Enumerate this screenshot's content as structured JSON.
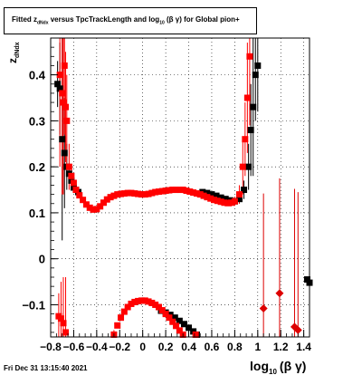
{
  "title_parts": {
    "pre": "Fitted  z",
    "sub1": "dNdx",
    "mid": "  versus TpcTrackLength and log",
    "sub2": "10",
    "post": "(β γ) for Global pion+"
  },
  "timestamp": "Fri Dec 31 13:15:40 2021",
  "chart_data": {
    "type": "scatter",
    "xlim": [
      -0.8,
      1.45
    ],
    "ylim": [
      -0.17,
      0.48
    ],
    "grid": true,
    "ylabel": {
      "main": "z",
      "sub": "dNdx"
    },
    "xlabel": {
      "main": "log",
      "sub": "10",
      "post": "(β γ)"
    },
    "x_ticks": [
      "-0.8",
      "-0.6",
      "-0.4",
      "-0.2",
      "0",
      "0.2",
      "0.4",
      "0.6",
      "0.8",
      "1",
      "1.2",
      "1.4"
    ],
    "x_tick_values": [
      -0.8,
      -0.6,
      -0.4,
      -0.2,
      0,
      0.2,
      0.4,
      0.6,
      0.8,
      1.0,
      1.2,
      1.4
    ],
    "y_ticks": [
      "-0.1",
      "0",
      "0.1",
      "0.2",
      "0.3",
      "0.4"
    ],
    "y_tick_values": [
      -0.1,
      0,
      0.1,
      0.2,
      0.3,
      0.4
    ],
    "series": [
      {
        "color": "#000000",
        "marker": "square",
        "points": [
          {
            "x": -0.74,
            "y": 0.38,
            "err": 0.05
          },
          {
            "x": -0.72,
            "y": 0.37,
            "err": 0.1
          },
          {
            "x": -0.7,
            "y": 0.26,
            "err": 0.22
          },
          {
            "x": -0.68,
            "y": 0.23,
            "err": 0.12
          },
          {
            "x": -0.66,
            "y": 0.2,
            "err": 0.05
          },
          {
            "x": -0.64,
            "y": 0.185,
            "err": 0.02
          },
          {
            "x": -0.62,
            "y": 0.17,
            "err": 0.01
          },
          {
            "x": -0.6,
            "y": 0.155,
            "err": 0.01
          },
          {
            "x": -0.58,
            "y": 0.15,
            "err": 0.005
          },
          {
            "x": -0.56,
            "y": 0.145,
            "err": 0.005
          },
          {
            "x": 0.52,
            "y": 0.145,
            "err": 0.004
          },
          {
            "x": 0.56,
            "y": 0.143,
            "err": 0.004
          },
          {
            "x": 0.6,
            "y": 0.14,
            "err": 0.004
          },
          {
            "x": 0.64,
            "y": 0.137,
            "err": 0.005
          },
          {
            "x": 0.68,
            "y": 0.133,
            "err": 0.005
          },
          {
            "x": 0.72,
            "y": 0.13,
            "err": 0.005
          },
          {
            "x": 0.76,
            "y": 0.127,
            "err": 0.006
          },
          {
            "x": 0.8,
            "y": 0.125,
            "err": 0.008
          },
          {
            "x": 0.84,
            "y": 0.13,
            "err": 0.01
          },
          {
            "x": 0.88,
            "y": 0.15,
            "err": 0.02
          },
          {
            "x": 0.92,
            "y": 0.2,
            "err": 0.05
          },
          {
            "x": 0.94,
            "y": 0.28,
            "err": 0.1
          },
          {
            "x": 0.96,
            "y": 0.33,
            "err": 0.15
          },
          {
            "x": 0.98,
            "y": 0.4,
            "err": 0.1
          },
          {
            "x": 1.0,
            "y": 0.42,
            "err": 0.1
          },
          {
            "x": 0.16,
            "y": -0.113,
            "err": 0.003
          },
          {
            "x": 0.2,
            "y": -0.117,
            "err": 0.003
          },
          {
            "x": 0.24,
            "y": -0.122,
            "err": 0.003
          },
          {
            "x": 0.28,
            "y": -0.128,
            "err": 0.003
          },
          {
            "x": 0.32,
            "y": -0.135,
            "err": 0.003
          },
          {
            "x": 0.36,
            "y": -0.142,
            "err": 0.003
          },
          {
            "x": 0.4,
            "y": -0.15,
            "err": 0.003
          },
          {
            "x": 0.44,
            "y": -0.158,
            "err": 0.004
          },
          {
            "x": 0.47,
            "y": -0.165,
            "err": 0.005
          },
          {
            "x": 1.43,
            "y": -0.045,
            "err": 0.005
          },
          {
            "x": 1.45,
            "y": -0.052,
            "err": 0.005
          }
        ]
      },
      {
        "color": "#ff0000",
        "marker": "square",
        "points": [
          {
            "x": -0.72,
            "y": 0.4,
            "err": 0.2
          },
          {
            "x": -0.7,
            "y": 0.36,
            "err": 0.22
          },
          {
            "x": -0.69,
            "y": 0.34,
            "err": 0.2
          },
          {
            "x": -0.68,
            "y": 0.42,
            "err": 0.15
          },
          {
            "x": -0.67,
            "y": 0.33,
            "err": 0.12
          },
          {
            "x": -0.66,
            "y": 0.3,
            "err": 0.1
          },
          {
            "x": -0.64,
            "y": 0.2,
            "err": 0.05
          },
          {
            "x": -0.62,
            "y": 0.18,
            "err": 0.02
          },
          {
            "x": -0.6,
            "y": 0.165,
            "err": 0.01
          },
          {
            "x": -0.58,
            "y": 0.15,
            "err": 0.005
          },
          {
            "x": -0.55,
            "y": 0.138,
            "err": 0.003
          },
          {
            "x": -0.52,
            "y": 0.128,
            "err": 0.003
          },
          {
            "x": -0.49,
            "y": 0.118,
            "err": 0.003
          },
          {
            "x": -0.46,
            "y": 0.111,
            "err": 0.002
          },
          {
            "x": -0.43,
            "y": 0.107,
            "err": 0.002
          },
          {
            "x": -0.4,
            "y": 0.108,
            "err": 0.002
          },
          {
            "x": -0.37,
            "y": 0.114,
            "err": 0.002
          },
          {
            "x": -0.34,
            "y": 0.122,
            "err": 0.002
          },
          {
            "x": -0.31,
            "y": 0.129,
            "err": 0.002
          },
          {
            "x": -0.28,
            "y": 0.134,
            "err": 0.002
          },
          {
            "x": -0.25,
            "y": 0.137,
            "err": 0.002
          },
          {
            "x": -0.22,
            "y": 0.14,
            "err": 0.002
          },
          {
            "x": -0.19,
            "y": 0.141,
            "err": 0.002
          },
          {
            "x": -0.16,
            "y": 0.142,
            "err": 0.002
          },
          {
            "x": -0.13,
            "y": 0.143,
            "err": 0.002
          },
          {
            "x": -0.1,
            "y": 0.143,
            "err": 0.002
          },
          {
            "x": -0.07,
            "y": 0.142,
            "err": 0.002
          },
          {
            "x": -0.04,
            "y": 0.141,
            "err": 0.002
          },
          {
            "x": -0.01,
            "y": 0.14,
            "err": 0.002
          },
          {
            "x": 0.02,
            "y": 0.14,
            "err": 0.002
          },
          {
            "x": 0.05,
            "y": 0.141,
            "err": 0.002
          },
          {
            "x": 0.08,
            "y": 0.143,
            "err": 0.002
          },
          {
            "x": 0.11,
            "y": 0.145,
            "err": 0.002
          },
          {
            "x": 0.14,
            "y": 0.146,
            "err": 0.002
          },
          {
            "x": 0.17,
            "y": 0.147,
            "err": 0.002
          },
          {
            "x": 0.2,
            "y": 0.148,
            "err": 0.002
          },
          {
            "x": 0.23,
            "y": 0.149,
            "err": 0.002
          },
          {
            "x": 0.26,
            "y": 0.15,
            "err": 0.002
          },
          {
            "x": 0.29,
            "y": 0.15,
            "err": 0.002
          },
          {
            "x": 0.32,
            "y": 0.15,
            "err": 0.002
          },
          {
            "x": 0.35,
            "y": 0.15,
            "err": 0.002
          },
          {
            "x": 0.38,
            "y": 0.148,
            "err": 0.002
          },
          {
            "x": 0.41,
            "y": 0.146,
            "err": 0.002
          },
          {
            "x": 0.44,
            "y": 0.144,
            "err": 0.003
          },
          {
            "x": 0.47,
            "y": 0.142,
            "err": 0.003
          },
          {
            "x": 0.5,
            "y": 0.14,
            "err": 0.003
          },
          {
            "x": 0.53,
            "y": 0.137,
            "err": 0.003
          },
          {
            "x": 0.56,
            "y": 0.134,
            "err": 0.003
          },
          {
            "x": 0.59,
            "y": 0.131,
            "err": 0.004
          },
          {
            "x": 0.62,
            "y": 0.128,
            "err": 0.004
          },
          {
            "x": 0.65,
            "y": 0.126,
            "err": 0.004
          },
          {
            "x": 0.68,
            "y": 0.124,
            "err": 0.005
          },
          {
            "x": 0.71,
            "y": 0.122,
            "err": 0.005
          },
          {
            "x": 0.74,
            "y": 0.121,
            "err": 0.006
          },
          {
            "x": 0.77,
            "y": 0.122,
            "err": 0.008
          },
          {
            "x": 0.8,
            "y": 0.125,
            "err": 0.01
          },
          {
            "x": 0.84,
            "y": 0.14,
            "err": 0.02
          },
          {
            "x": 0.87,
            "y": 0.2,
            "err": 0.06
          },
          {
            "x": 0.89,
            "y": 0.26,
            "err": 0.08
          },
          {
            "x": 0.91,
            "y": 0.35,
            "err": 0.12
          },
          {
            "x": 0.93,
            "y": 0.44,
            "err": 0.15
          },
          {
            "x": -0.73,
            "y": -0.125,
            "err": 0.05
          },
          {
            "x": -0.71,
            "y": -0.13,
            "err": 0.08
          },
          {
            "x": -0.69,
            "y": -0.14,
            "err": 0.1
          },
          {
            "x": -0.67,
            "y": -0.16,
            "err": 0.12
          },
          {
            "x": -0.25,
            "y": -0.165,
            "err": 0.01
          },
          {
            "x": -0.22,
            "y": -0.145,
            "err": 0.005
          },
          {
            "x": -0.19,
            "y": -0.128,
            "err": 0.004
          },
          {
            "x": -0.16,
            "y": -0.115,
            "err": 0.003
          },
          {
            "x": -0.13,
            "y": -0.105,
            "err": 0.003
          },
          {
            "x": -0.1,
            "y": -0.098,
            "err": 0.003
          },
          {
            "x": -0.07,
            "y": -0.094,
            "err": 0.003
          },
          {
            "x": -0.04,
            "y": -0.092,
            "err": 0.003
          },
          {
            "x": -0.01,
            "y": -0.091,
            "err": 0.003
          },
          {
            "x": 0.02,
            "y": -0.091,
            "err": 0.003
          },
          {
            "x": 0.05,
            "y": -0.093,
            "err": 0.003
          },
          {
            "x": 0.08,
            "y": -0.096,
            "err": 0.003
          },
          {
            "x": 0.11,
            "y": -0.1,
            "err": 0.003
          },
          {
            "x": 0.14,
            "y": -0.105,
            "err": 0.003
          },
          {
            "x": 0.17,
            "y": -0.112,
            "err": 0.003
          },
          {
            "x": 0.2,
            "y": -0.12,
            "err": 0.003
          },
          {
            "x": 0.23,
            "y": -0.128,
            "err": 0.003
          },
          {
            "x": 0.26,
            "y": -0.137,
            "err": 0.004
          },
          {
            "x": 0.29,
            "y": -0.146,
            "err": 0.004
          },
          {
            "x": 0.32,
            "y": -0.156,
            "err": 0.005
          },
          {
            "x": 0.35,
            "y": -0.165,
            "err": 0.005
          },
          {
            "x": 0.46,
            "y": -0.165,
            "err": 0.005
          }
        ]
      },
      {
        "color": "#dd0000",
        "marker": "diamond",
        "points": [
          {
            "x": 1.05,
            "y": -0.108,
            "err": 0.25
          },
          {
            "x": 1.19,
            "y": -0.075,
            "err": 0.25
          },
          {
            "x": 1.32,
            "y": -0.148,
            "err": 0.3
          },
          {
            "x": 1.35,
            "y": -0.155,
            "err": 0.3
          }
        ]
      }
    ]
  }
}
